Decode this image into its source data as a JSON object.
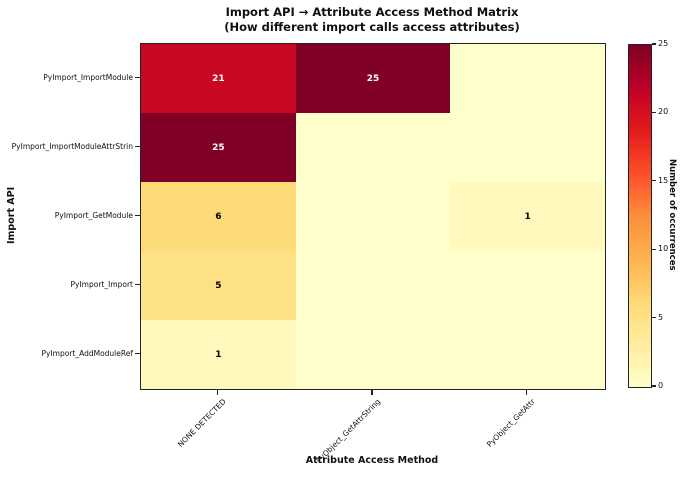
{
  "chart_data": {
    "type": "heatmap",
    "title": "Import API → Attribute Access Method Matrix",
    "subtitle": "(How different import calls access attributes)",
    "xlabel": "Attribute Access Method",
    "ylabel": "Import API",
    "colorbar_label": "Number of occurrences",
    "rows": [
      "PyImport_ImportModule",
      "PyImport_ImportModuleAttrStrin",
      "PyImport_GetModule",
      "PyImport_Import",
      "PyImport_AddModuleRef"
    ],
    "columns": [
      "NONE DETECTED",
      "PyObject_GetAttrString",
      "PyObject_GetAttr"
    ],
    "values": [
      [
        21,
        25,
        0
      ],
      [
        25,
        0,
        0
      ],
      [
        6,
        0,
        1
      ],
      [
        5,
        0,
        0
      ],
      [
        1,
        0,
        0
      ]
    ],
    "annotate_zeros": false,
    "vmin": 0,
    "vmax": 25,
    "colorbar_ticks": [
      0,
      5,
      10,
      15,
      20,
      25
    ],
    "colormap": {
      "name": "YlOrRd",
      "stops": [
        [
          0.0,
          "#ffffcc"
        ],
        [
          0.125,
          "#ffeda0"
        ],
        [
          0.25,
          "#fed976"
        ],
        [
          0.375,
          "#feb24c"
        ],
        [
          0.5,
          "#fd8d3c"
        ],
        [
          0.625,
          "#fc4e2a"
        ],
        [
          0.75,
          "#e31a1c"
        ],
        [
          0.875,
          "#bd0026"
        ],
        [
          1.0,
          "#800026"
        ]
      ]
    },
    "annotation_text_colors": {
      "on_light": "#000000",
      "on_dark": "#ffffff"
    },
    "grid": false,
    "legend": false
  },
  "figure": {
    "background": "#ffffff",
    "spine_color": "#222222"
  }
}
